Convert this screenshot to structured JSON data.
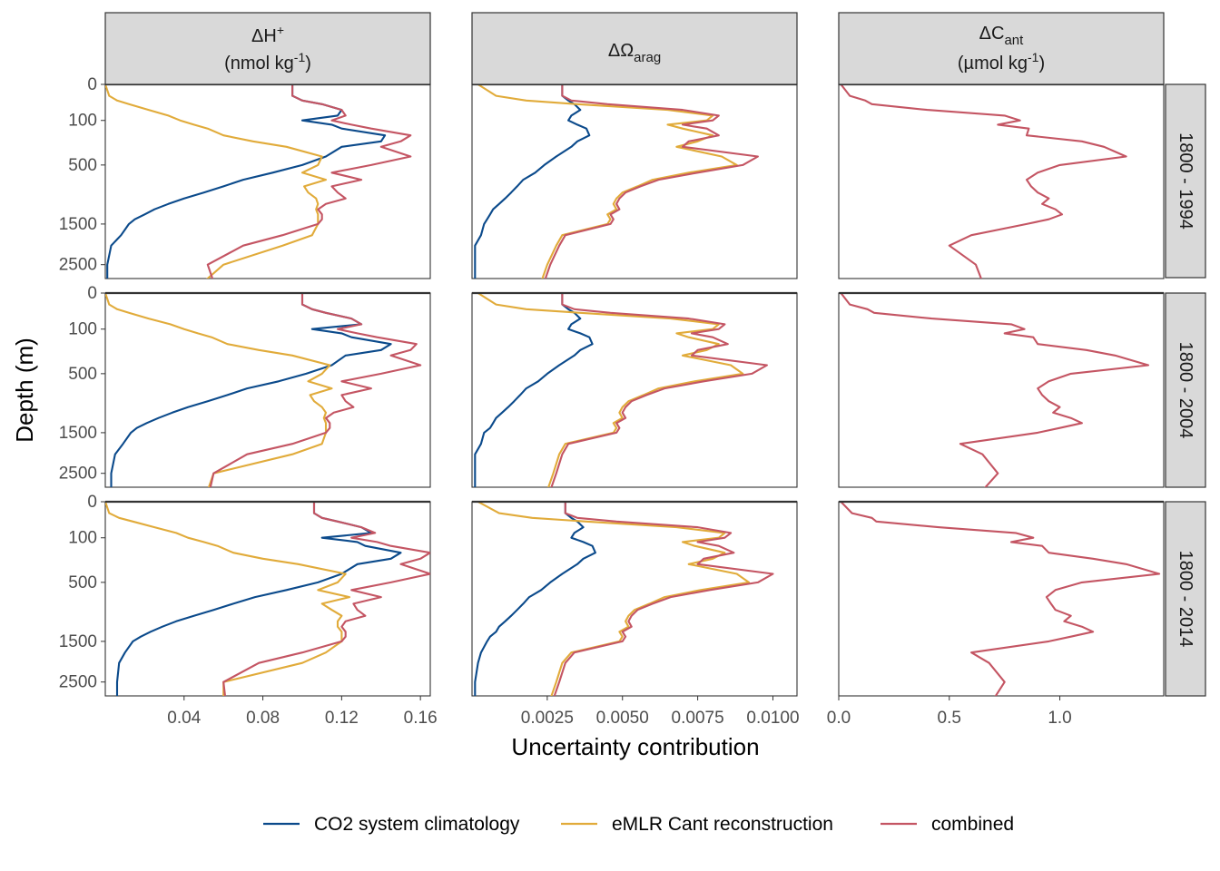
{
  "figure": {
    "xlabel": "Uncertainty contribution",
    "ylabel": "Depth (m)"
  },
  "columns": [
    {
      "title_main": "ΔH",
      "title_sup": "+",
      "title_sub": "",
      "unit_pre": "(nmol kg",
      "unit_sup": "-1",
      "unit_post": ")"
    },
    {
      "title_main": "ΔΩ",
      "title_sup": "",
      "title_sub": "arag",
      "unit_pre": "",
      "unit_sup": "",
      "unit_post": ""
    },
    {
      "title_main": "ΔC",
      "title_sup": "",
      "title_sub": "ant",
      "unit_pre": "(µmol kg",
      "unit_sup": "-1",
      "unit_post": ")"
    }
  ],
  "rows": [
    "1800 - 1994",
    "1800 - 2004",
    "1800 - 2014"
  ],
  "legend": {
    "items": [
      {
        "label": "CO2 system climatology",
        "color": "#0b4a8b"
      },
      {
        "label": "eMLR Cant reconstruction",
        "color": "#e1ab3a"
      },
      {
        "label": "combined",
        "color": "#c45563"
      }
    ]
  },
  "chart_data": {
    "type": "line",
    "y_scale": "sqrt",
    "y_reversed": true,
    "ylim": [
      0,
      2900
    ],
    "y_ticks": [
      0,
      100,
      500,
      1500,
      2500
    ],
    "y_tick_labels": [
      "0",
      "100",
      "500",
      "1500",
      "2500"
    ],
    "depths": [
      0,
      10,
      20,
      30,
      50,
      75,
      100,
      125,
      150,
      200,
      250,
      300,
      400,
      500,
      600,
      700,
      800,
      900,
      1000,
      1100,
      1200,
      1300,
      1400,
      1500,
      1750,
      2000,
      2500,
      3000
    ],
    "x_axes": [
      {
        "xlim": [
          0,
          0.165
        ],
        "ticks": [
          0.04,
          0.08,
          0.12,
          0.16
        ],
        "tick_labels": [
          "0.04",
          "0.08",
          "0.12",
          "0.16"
        ]
      },
      {
        "xlim": [
          0,
          0.0108
        ],
        "ticks": [
          0.0025,
          0.005,
          0.0075,
          0.01
        ],
        "tick_labels": [
          "0.0025",
          "0.0050",
          "0.0075",
          "0.0100"
        ]
      },
      {
        "xlim": [
          0,
          1.47
        ],
        "ticks": [
          0,
          0.5,
          1.0
        ],
        "tick_labels": [
          "0.0",
          "0.5",
          "1.0"
        ]
      }
    ],
    "panels": [
      [
        {
          "series": [
            {
              "name": "CO2 system climatology",
              "values": [
                0.095,
                0.095,
                0.1,
                0.11,
                0.12,
                0.118,
                0.1,
                0.115,
                0.12,
                0.142,
                0.14,
                0.12,
                0.112,
                0.1,
                0.085,
                0.07,
                0.06,
                0.05,
                0.04,
                0.032,
                0.025,
                0.02,
                0.015,
                0.012,
                0.008,
                0.003,
                0.001,
                0.001
              ]
            },
            {
              "name": "eMLR Cant reconstruction",
              "values": [
                0.0,
                0.002,
                0.006,
                0.012,
                0.022,
                0.032,
                0.038,
                0.045,
                0.052,
                0.06,
                0.075,
                0.092,
                0.11,
                0.108,
                0.1,
                0.112,
                0.101,
                0.103,
                0.107,
                0.108,
                0.107,
                0.108,
                0.108,
                0.108,
                0.105,
                0.09,
                0.06,
                0.05
              ]
            },
            {
              "name": "combined",
              "values": [
                0.095,
                0.095,
                0.1,
                0.11,
                0.12,
                0.122,
                0.115,
                0.125,
                0.135,
                0.155,
                0.15,
                0.14,
                0.155,
                0.135,
                0.115,
                0.13,
                0.115,
                0.118,
                0.122,
                0.112,
                0.108,
                0.11,
                0.11,
                0.108,
                0.09,
                0.07,
                0.052,
                0.055
              ]
            }
          ]
        },
        {
          "series": [
            {
              "name": "CO2 system climatology",
              "values": [
                0.003,
                0.003,
                0.0032,
                0.0034,
                0.0036,
                0.0033,
                0.0032,
                0.0035,
                0.0038,
                0.0039,
                0.0035,
                0.0033,
                0.0028,
                0.0024,
                0.0021,
                0.0017,
                0.0015,
                0.0013,
                0.0011,
                0.0009,
                0.0007,
                0.0006,
                0.0005,
                0.0004,
                0.0003,
                0.0001,
                0.0001,
                0.0001
              ]
            },
            {
              "name": "eMLR Cant reconstruction",
              "values": [
                0.0002,
                0.0008,
                0.0018,
                0.0035,
                0.0065,
                0.008,
                0.0078,
                0.0065,
                0.007,
                0.008,
                0.0075,
                0.0068,
                0.0083,
                0.0088,
                0.0072,
                0.006,
                0.0055,
                0.005,
                0.0048,
                0.0047,
                0.0048,
                0.0045,
                0.0046,
                0.0045,
                0.003,
                0.0028,
                0.0025,
                0.0023
              ]
            },
            {
              "name": "combined",
              "values": [
                0.003,
                0.003,
                0.0033,
                0.0045,
                0.007,
                0.0082,
                0.008,
                0.007,
                0.0078,
                0.0082,
                0.0072,
                0.007,
                0.0095,
                0.009,
                0.0075,
                0.0062,
                0.0056,
                0.0051,
                0.0049,
                0.0048,
                0.0049,
                0.0046,
                0.0047,
                0.0046,
                0.0031,
                0.0029,
                0.0026,
                0.0024
              ]
            }
          ]
        },
        {
          "series": [
            {
              "name": "combined",
              "values": [
                0.01,
                0.05,
                0.12,
                0.15,
                0.4,
                0.75,
                0.82,
                0.72,
                0.86,
                0.85,
                1.1,
                1.2,
                1.3,
                1.0,
                0.9,
                0.85,
                0.87,
                0.9,
                0.95,
                0.92,
                0.98,
                1.01,
                0.95,
                0.85,
                0.6,
                0.5,
                0.62,
                0.65
              ]
            }
          ]
        }
      ],
      [
        {
          "series": [
            {
              "name": "CO2 system climatology",
              "values": [
                0.1,
                0.1,
                0.105,
                0.112,
                0.125,
                0.13,
                0.105,
                0.12,
                0.125,
                0.145,
                0.14,
                0.122,
                0.115,
                0.102,
                0.088,
                0.072,
                0.062,
                0.052,
                0.042,
                0.034,
                0.027,
                0.021,
                0.016,
                0.013,
                0.009,
                0.005,
                0.003,
                0.003
              ]
            },
            {
              "name": "eMLR Cant reconstruction",
              "values": [
                0.0,
                0.002,
                0.006,
                0.012,
                0.022,
                0.033,
                0.04,
                0.047,
                0.054,
                0.062,
                0.078,
                0.095,
                0.114,
                0.11,
                0.103,
                0.115,
                0.104,
                0.106,
                0.11,
                0.112,
                0.111,
                0.112,
                0.112,
                0.112,
                0.11,
                0.095,
                0.055,
                0.052
              ]
            },
            {
              "name": "combined",
              "values": [
                0.1,
                0.1,
                0.105,
                0.112,
                0.125,
                0.13,
                0.118,
                0.128,
                0.138,
                0.158,
                0.155,
                0.145,
                0.16,
                0.14,
                0.12,
                0.135,
                0.12,
                0.122,
                0.126,
                0.116,
                0.112,
                0.114,
                0.114,
                0.112,
                0.095,
                0.072,
                0.055,
                0.053
              ]
            }
          ]
        },
        {
          "series": [
            {
              "name": "CO2 system climatology",
              "values": [
                0.003,
                0.003,
                0.0032,
                0.0034,
                0.0036,
                0.0033,
                0.0032,
                0.0036,
                0.0039,
                0.004,
                0.0036,
                0.0034,
                0.0029,
                0.0025,
                0.0022,
                0.0018,
                0.0016,
                0.0014,
                0.0012,
                0.001,
                0.0008,
                0.0007,
                0.0006,
                0.0004,
                0.0003,
                0.0001,
                0.0001,
                0.0001
              ]
            },
            {
              "name": "eMLR Cant reconstruction",
              "values": [
                0.0002,
                0.0008,
                0.0018,
                0.0036,
                0.0066,
                0.0082,
                0.008,
                0.0068,
                0.0072,
                0.0082,
                0.0078,
                0.007,
                0.0086,
                0.009,
                0.0074,
                0.0062,
                0.0057,
                0.0052,
                0.005,
                0.0049,
                0.005,
                0.0047,
                0.0048,
                0.0047,
                0.0031,
                0.0029,
                0.0027,
                0.0025
              ]
            },
            {
              "name": "combined",
              "values": [
                0.003,
                0.003,
                0.0034,
                0.0046,
                0.0072,
                0.0084,
                0.0082,
                0.0073,
                0.008,
                0.0085,
                0.0075,
                0.0073,
                0.0098,
                0.0093,
                0.0077,
                0.0064,
                0.0058,
                0.0053,
                0.0051,
                0.005,
                0.0051,
                0.0048,
                0.0049,
                0.0048,
                0.0032,
                0.003,
                0.0028,
                0.0026
              ]
            }
          ]
        },
        {
          "series": [
            {
              "name": "combined",
              "values": [
                0.01,
                0.05,
                0.13,
                0.16,
                0.42,
                0.78,
                0.84,
                0.75,
                0.88,
                0.9,
                1.12,
                1.25,
                1.4,
                1.05,
                0.95,
                0.9,
                0.92,
                0.95,
                1.0,
                0.97,
                1.05,
                1.1,
                1.0,
                0.9,
                0.55,
                0.65,
                0.72,
                0.65
              ]
            }
          ]
        }
      ],
      [
        {
          "series": [
            {
              "name": "CO2 system climatology",
              "values": [
                0.106,
                0.106,
                0.11,
                0.118,
                0.13,
                0.135,
                0.11,
                0.128,
                0.132,
                0.15,
                0.145,
                0.128,
                0.12,
                0.108,
                0.092,
                0.076,
                0.065,
                0.055,
                0.045,
                0.036,
                0.029,
                0.023,
                0.018,
                0.014,
                0.01,
                0.007,
                0.006,
                0.006
              ]
            },
            {
              "name": "eMLR Cant reconstruction",
              "values": [
                0.0,
                0.002,
                0.007,
                0.014,
                0.025,
                0.036,
                0.042,
                0.05,
                0.057,
                0.065,
                0.08,
                0.098,
                0.122,
                0.118,
                0.108,
                0.124,
                0.11,
                0.115,
                0.12,
                0.118,
                0.118,
                0.12,
                0.12,
                0.12,
                0.112,
                0.1,
                0.06,
                0.06
              ]
            },
            {
              "name": "combined",
              "values": [
                0.106,
                0.106,
                0.11,
                0.118,
                0.13,
                0.137,
                0.125,
                0.138,
                0.145,
                0.165,
                0.16,
                0.15,
                0.165,
                0.145,
                0.125,
                0.14,
                0.126,
                0.128,
                0.132,
                0.122,
                0.12,
                0.122,
                0.122,
                0.12,
                0.1,
                0.078,
                0.06,
                0.061
              ]
            }
          ]
        },
        {
          "series": [
            {
              "name": "CO2 system climatology",
              "values": [
                0.0031,
                0.0031,
                0.0033,
                0.0035,
                0.0037,
                0.0034,
                0.0033,
                0.0037,
                0.004,
                0.0041,
                0.0037,
                0.0035,
                0.003,
                0.0026,
                0.0023,
                0.0019,
                0.0017,
                0.0015,
                0.0013,
                0.0011,
                0.0009,
                0.0008,
                0.0006,
                0.0005,
                0.0003,
                0.0002,
                0.0001,
                0.0001
              ]
            },
            {
              "name": "eMLR Cant reconstruction",
              "values": [
                0.0002,
                0.0009,
                0.002,
                0.0038,
                0.0068,
                0.0084,
                0.0082,
                0.007,
                0.0074,
                0.0084,
                0.008,
                0.0072,
                0.0088,
                0.0092,
                0.0076,
                0.0064,
                0.0059,
                0.0054,
                0.0052,
                0.0051,
                0.0052,
                0.0049,
                0.005,
                0.0049,
                0.0033,
                0.003,
                0.0028,
                0.0026
              ]
            },
            {
              "name": "combined",
              "values": [
                0.0031,
                0.0031,
                0.0035,
                0.0048,
                0.0075,
                0.0086,
                0.0084,
                0.0075,
                0.0082,
                0.0087,
                0.0077,
                0.0075,
                0.01,
                0.0095,
                0.0079,
                0.0066,
                0.006,
                0.0055,
                0.0053,
                0.0052,
                0.0053,
                0.005,
                0.0051,
                0.005,
                0.0034,
                0.0031,
                0.0029,
                0.0027
              ]
            }
          ]
        },
        {
          "series": [
            {
              "name": "combined",
              "values": [
                0.01,
                0.06,
                0.15,
                0.17,
                0.45,
                0.8,
                0.88,
                0.78,
                0.92,
                0.95,
                1.15,
                1.3,
                1.45,
                1.1,
                0.98,
                0.94,
                0.96,
                0.98,
                1.05,
                1.02,
                1.1,
                1.15,
                1.05,
                0.95,
                0.6,
                0.68,
                0.75,
                0.7
              ]
            }
          ]
        }
      ]
    ]
  }
}
